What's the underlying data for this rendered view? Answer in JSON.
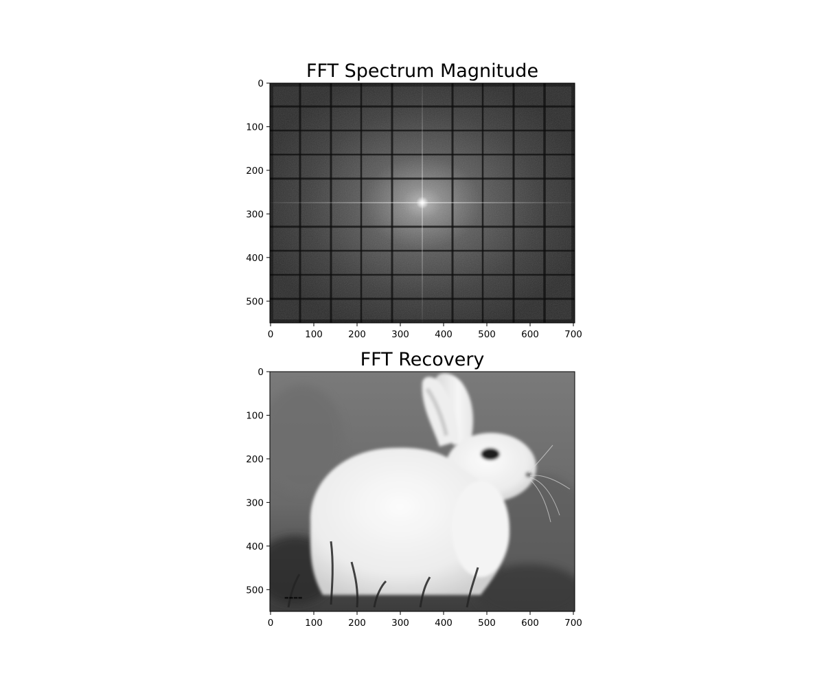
{
  "chart_data": [
    {
      "type": "image",
      "title": "FFT Spectrum Magnitude",
      "content": "log-magnitude FFT spectrum, grayscale, bright center with grid of darker lines",
      "colormap": "gray",
      "xlim": [
        0,
        700
      ],
      "ylim": [
        0,
        550
      ],
      "xticks": [
        0,
        100,
        200,
        300,
        400,
        500,
        600,
        700
      ],
      "yticks": [
        0,
        100,
        200,
        300,
        400,
        500
      ],
      "grid": false
    },
    {
      "type": "image",
      "title": "FFT Recovery",
      "content": "grayscale photo of a white rabbit sitting on grass, facing right",
      "colormap": "gray",
      "xlim": [
        0,
        700
      ],
      "ylim": [
        0,
        550
      ],
      "xticks": [
        0,
        100,
        200,
        300,
        400,
        500,
        600,
        700
      ],
      "yticks": [
        0,
        100,
        200,
        300,
        400,
        500
      ],
      "grid": false
    }
  ]
}
